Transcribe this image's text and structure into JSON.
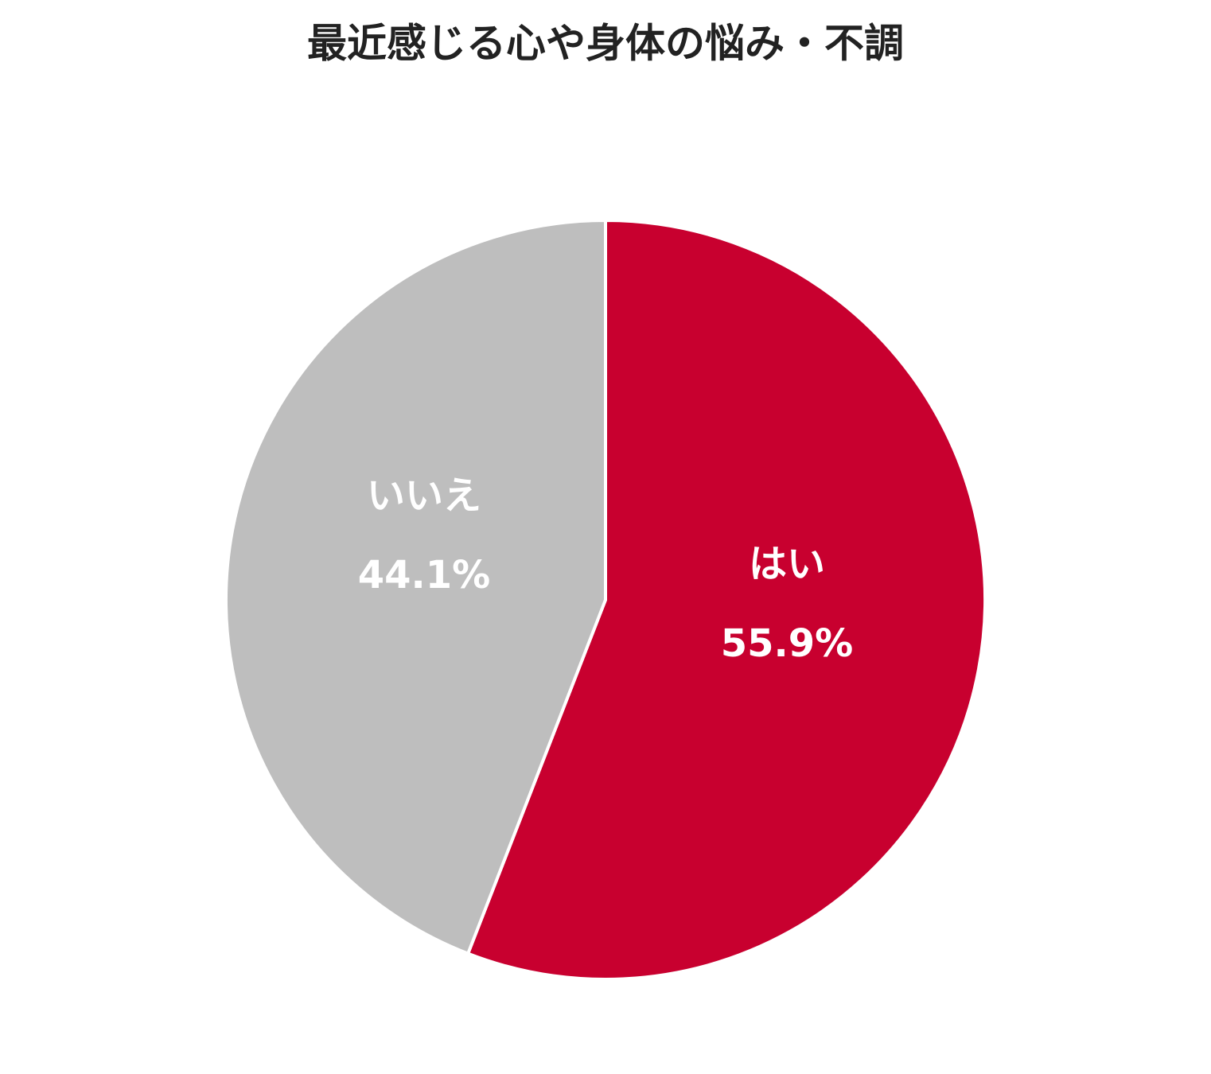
{
  "chart_data": {
    "type": "pie",
    "title": "最近感じる心や身体の悩み・不調",
    "categories": [
      "はい",
      "いいえ"
    ],
    "values": [
      55.9,
      44.1
    ],
    "value_labels": [
      "55.9%",
      "44.1%"
    ],
    "colors": [
      "#c8002f",
      "#bebebe"
    ]
  }
}
